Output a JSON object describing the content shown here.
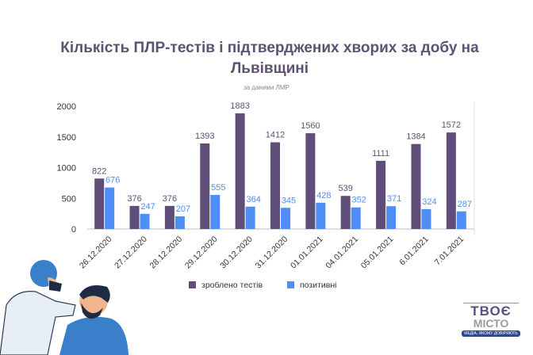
{
  "chart_data": {
    "type": "bar",
    "title": "Кількість ПЛР-тестів і підтверджених хворих за добу на Львівщині",
    "subtitle": "за даними ЛМР",
    "categories": [
      "26.12.2020",
      "27.12.2020",
      "28.12.2020",
      "29.12.2020",
      "30.12.2020",
      "31.12.2020",
      "01.01.2021",
      "04.01.2021",
      "05.01.2021",
      "6.01.2021",
      "7.01.2021"
    ],
    "series": [
      {
        "name": "зроблено тестів",
        "color": "#5f4e7a",
        "values": [
          822,
          376,
          376,
          1393,
          1883,
          1412,
          1560,
          539,
          1111,
          1384,
          1572
        ]
      },
      {
        "name": "позитивні",
        "color": "#4f8ef7",
        "values": [
          676,
          247,
          207,
          555,
          364,
          345,
          428,
          352,
          371,
          324,
          287
        ]
      }
    ],
    "yticks": [
      0,
      500,
      1000,
      1500,
      2000
    ],
    "ylim": [
      0,
      2000
    ],
    "legend_position": "bottom"
  },
  "logo": {
    "line1": "ТВОЄ",
    "line2": "МІСТО",
    "tagline": "МЕДІА, ЯКОМУ ДОВІРЯЮТЬ"
  }
}
